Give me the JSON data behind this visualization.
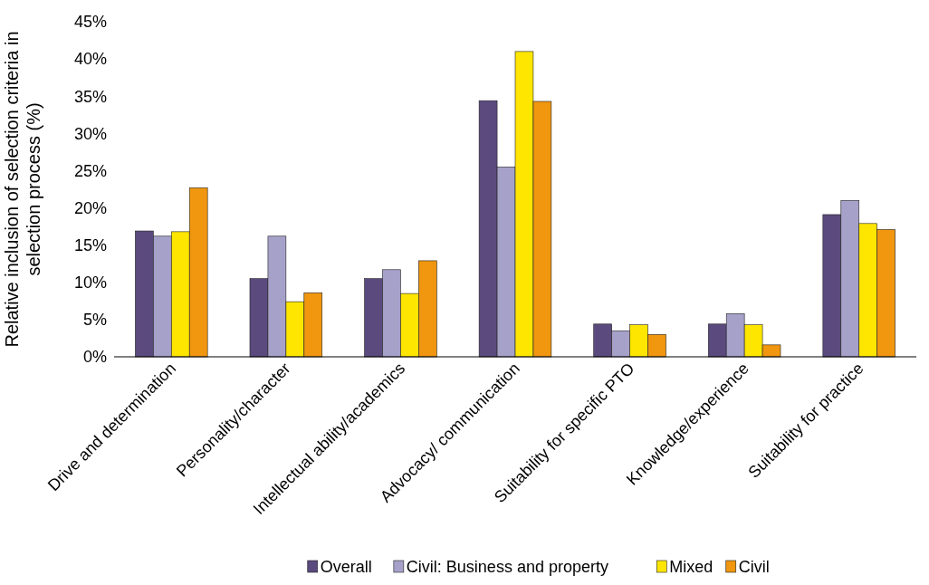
{
  "chart_data": {
    "type": "bar",
    "ylabel": "Relative  inclusion of selection criteria in selection process (%)",
    "categories": [
      "Drive and determination",
      "Personality/character",
      "Intellectual ability/academics",
      "Advocacy/ communication",
      "Suitability for specific PTO",
      "Knowledge/experience",
      "Suitability for practice"
    ],
    "series": [
      {
        "name": "Overall",
        "color": "#5b4a7e",
        "values": [
          16.9,
          10.5,
          10.5,
          34.4,
          4.4,
          4.4,
          19.1
        ]
      },
      {
        "name": "Civil: Business and property",
        "color": "#a6a1c9",
        "values": [
          16.2,
          16.2,
          11.7,
          25.5,
          3.5,
          5.8,
          21.0
        ]
      },
      {
        "name": "Mixed",
        "color": "#ffe600",
        "values": [
          16.8,
          7.4,
          8.5,
          41.0,
          4.3,
          4.3,
          17.9
        ]
      },
      {
        "name": "Civil",
        "color": "#f0960f",
        "values": [
          22.7,
          8.6,
          12.9,
          34.3,
          3.0,
          1.6,
          17.1
        ]
      }
    ],
    "ylim": [
      0,
      45
    ],
    "yticks": [
      {
        "value": 0,
        "label": "0%"
      },
      {
        "value": 5,
        "label": "5%"
      },
      {
        "value": 10,
        "label": "10%"
      },
      {
        "value": 15,
        "label": "15%"
      },
      {
        "value": 20,
        "label": "20%"
      },
      {
        "value": 25,
        "label": "25%"
      },
      {
        "value": 30,
        "label": "30%"
      },
      {
        "value": 35,
        "label": "35%"
      },
      {
        "value": 40,
        "label": "40%"
      },
      {
        "value": 45,
        "label": "45%"
      }
    ],
    "grid": false,
    "legend": "bottom"
  }
}
